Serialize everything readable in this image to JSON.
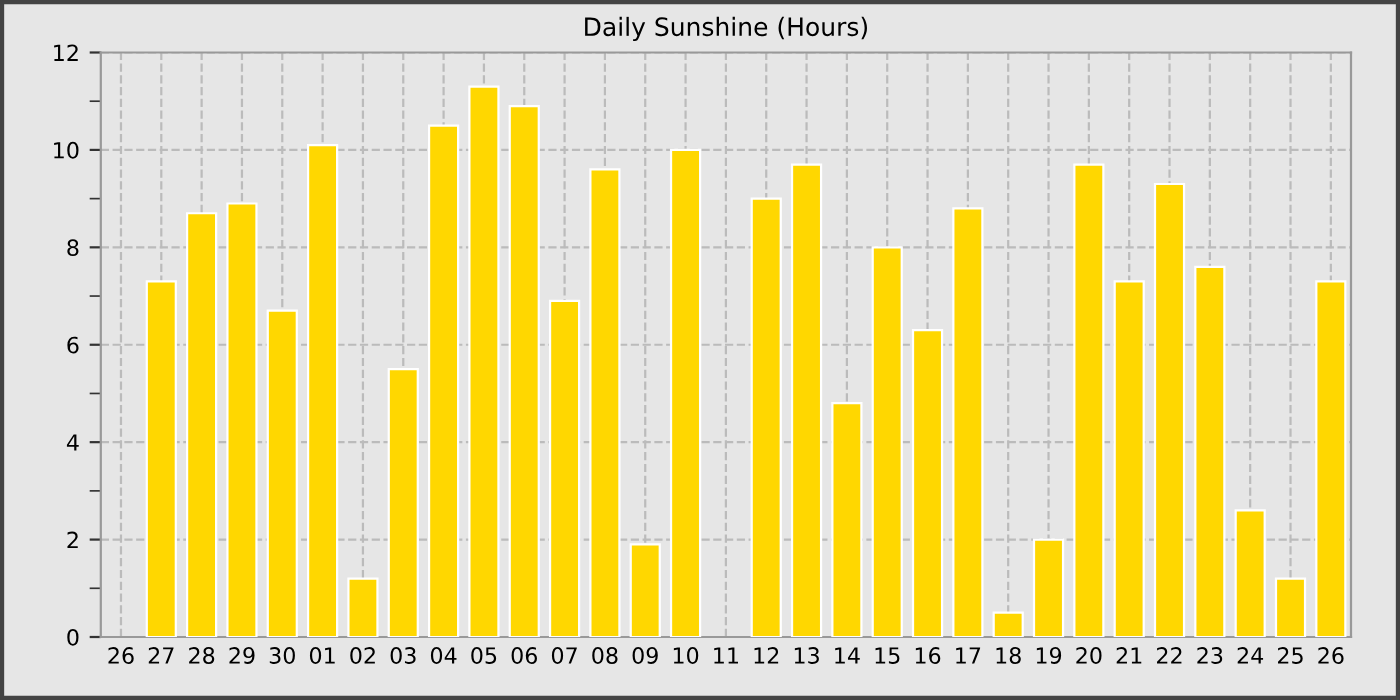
{
  "chart_data": {
    "type": "bar",
    "title": "Daily Sunshine (Hours)",
    "categories": [
      "26",
      "27",
      "28",
      "29",
      "30",
      "01",
      "02",
      "03",
      "04",
      "05",
      "06",
      "07",
      "08",
      "09",
      "10",
      "11",
      "12",
      "13",
      "14",
      "15",
      "16",
      "17",
      "18",
      "19",
      "20",
      "21",
      "22",
      "23",
      "24",
      "25",
      "26"
    ],
    "values": [
      null,
      7.3,
      8.7,
      8.9,
      6.7,
      10.1,
      1.2,
      5.5,
      10.5,
      11.3,
      10.9,
      6.9,
      9.6,
      1.9,
      10.0,
      null,
      9.0,
      9.7,
      4.8,
      8.0,
      6.3,
      8.8,
      0.5,
      2.0,
      9.7,
      7.3,
      9.3,
      7.6,
      2.6,
      1.2,
      7.3
    ],
    "color": "#ffd700",
    "ylim": [
      0,
      12
    ],
    "yticks": [
      0,
      {
        "value": 1,
        "label": null
      },
      2,
      {
        "value": 3,
        "label": null
      },
      4,
      {
        "value": 5,
        "label": null
      },
      6,
      {
        "value": 7,
        "label": null
      },
      8,
      {
        "value": 9,
        "label": null
      },
      10,
      {
        "value": 11,
        "label": null
      },
      12
    ],
    "grid": true
  }
}
